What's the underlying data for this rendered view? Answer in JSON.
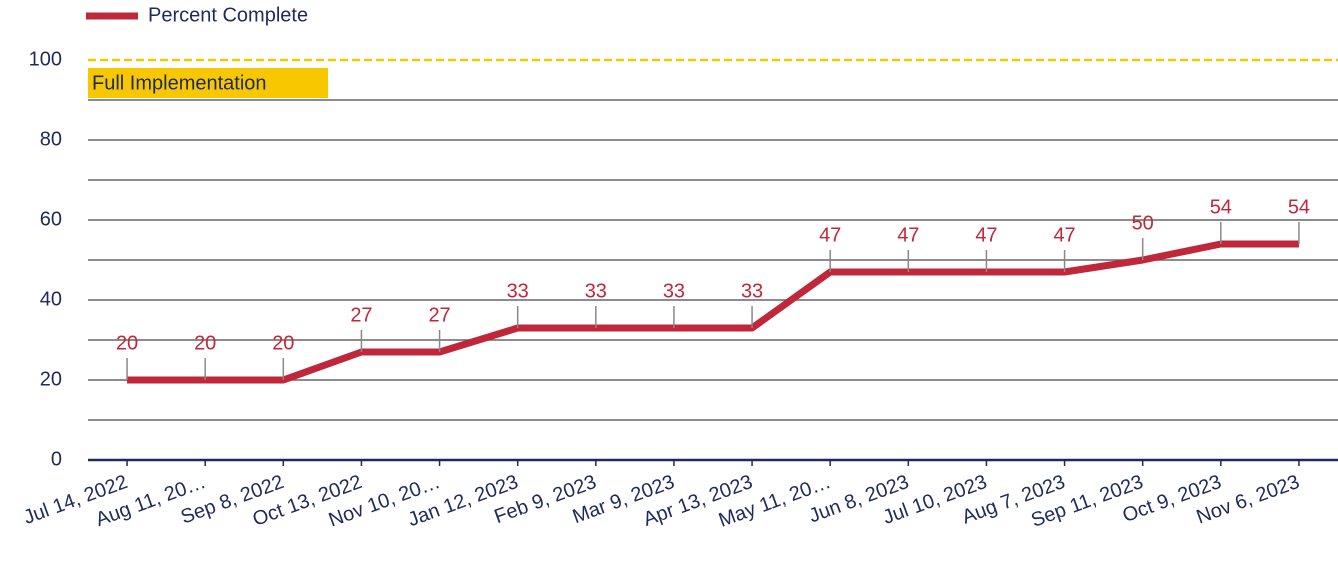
{
  "chart_data": {
    "type": "line",
    "categories": [
      "Jul 14, 2022",
      "Aug 11, 20…",
      "Sep 8, 2022",
      "Oct 13, 2022",
      "Nov 10, 20…",
      "Jan 12, 2023",
      "Feb 9, 2023",
      "Mar 9, 2023",
      "Apr 13, 2023",
      "May 11, 20…",
      "Jun 8, 2023",
      "Jul 10, 2023",
      "Aug 7, 2023",
      "Sep 11, 2023",
      "Oct 9, 2023",
      "Nov 6, 2023"
    ],
    "series": [
      {
        "name": "Percent Complete",
        "color": "#c1273a",
        "values": [
          20,
          20,
          20,
          27,
          27,
          33,
          33,
          33,
          33,
          47,
          47,
          47,
          47,
          50,
          54,
          54
        ]
      }
    ],
    "ylim": [
      0,
      100
    ],
    "yticks": [
      0,
      20,
      40,
      60,
      80,
      100
    ],
    "minor_yticks": [
      10,
      30,
      50,
      70,
      90
    ],
    "grid": true,
    "legend": "top-left",
    "target": {
      "value": 100,
      "label": "Full Implementation",
      "color": "#f7c800"
    }
  }
}
